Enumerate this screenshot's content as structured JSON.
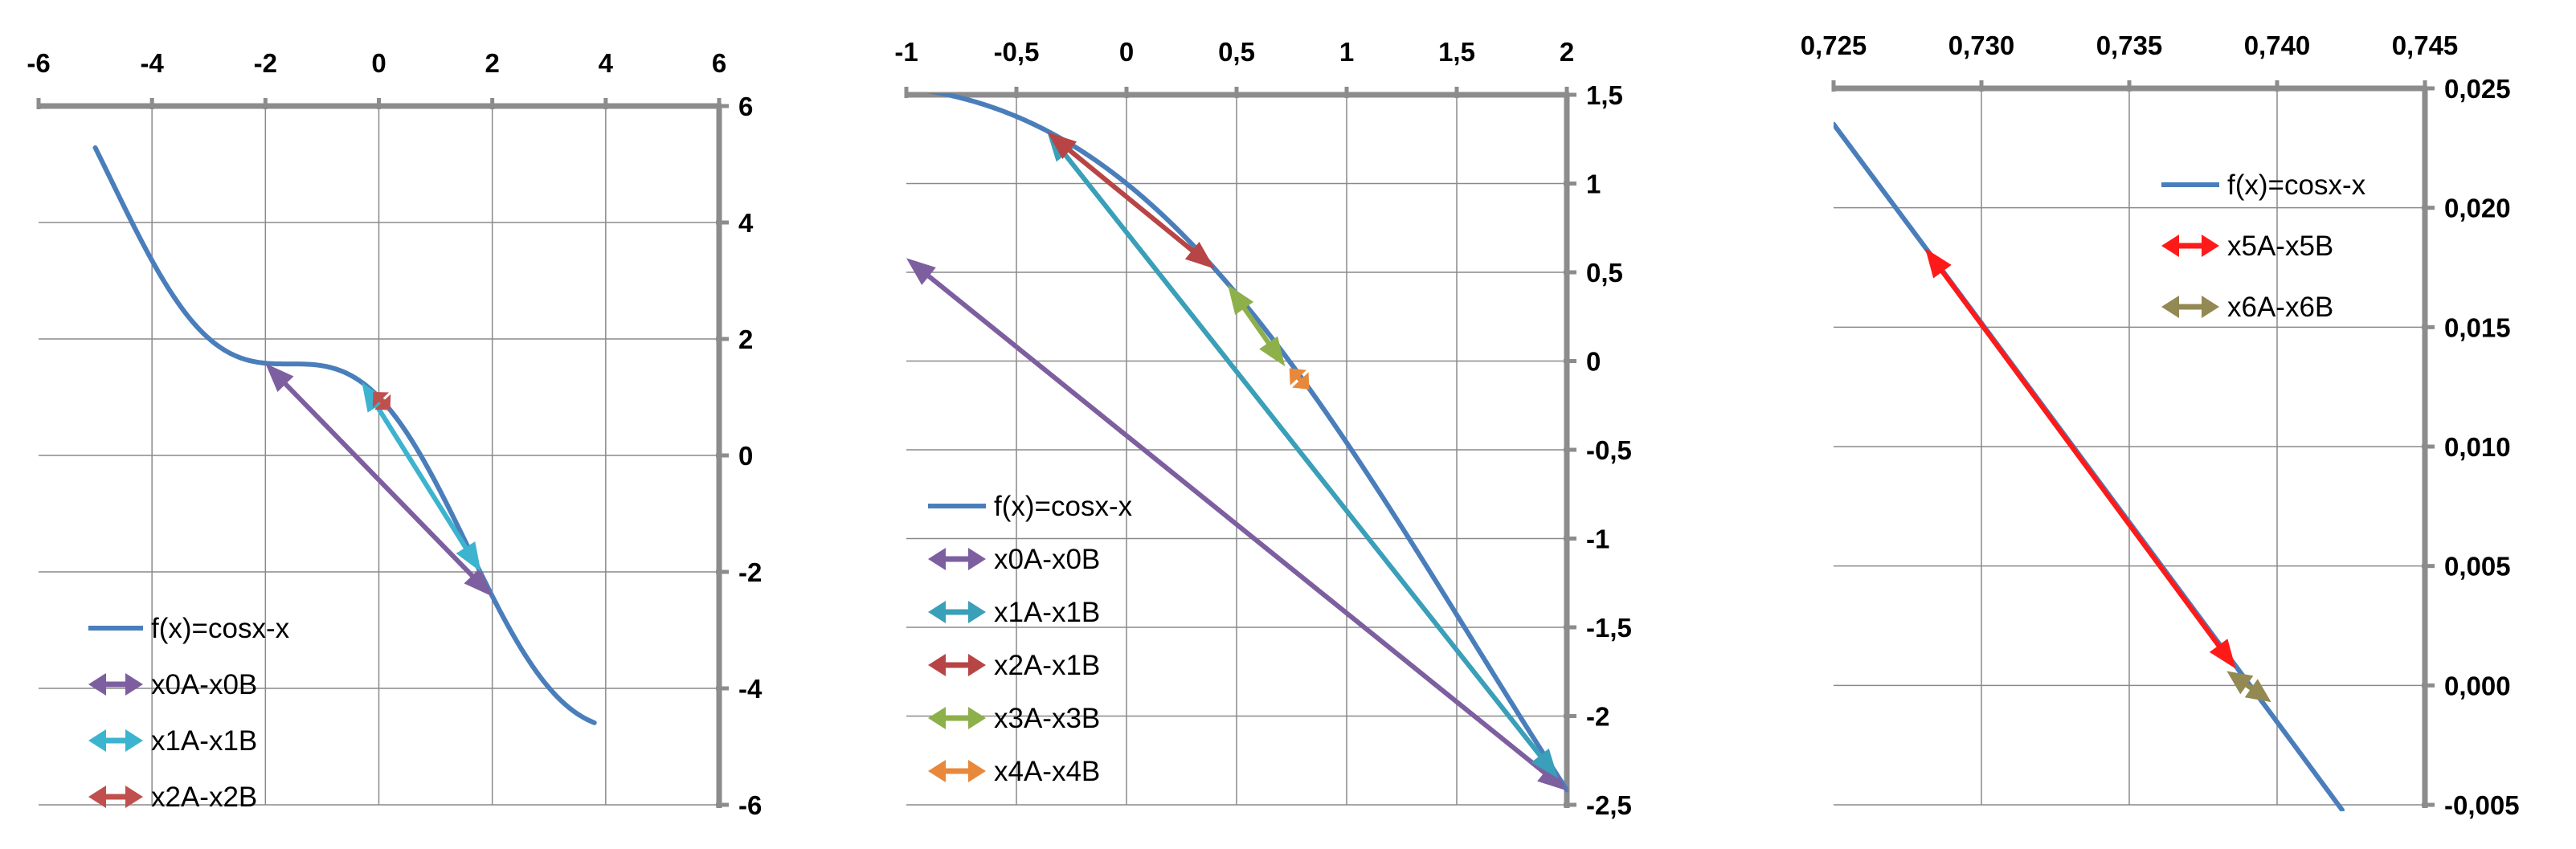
{
  "chart_data": [
    {
      "type": "line",
      "title": "",
      "xlabel": "",
      "ylabel": "",
      "xlim": [
        -6,
        6
      ],
      "ylim": [
        -6,
        6
      ],
      "x_ticks": [
        -6,
        -4,
        -2,
        0,
        2,
        4,
        6
      ],
      "y_ticks": [
        6,
        4,
        2,
        0,
        -2,
        -4,
        -6
      ],
      "x_tick_labels": [
        "-6",
        "-4",
        "-2",
        "0",
        "2",
        "4",
        "6"
      ],
      "y_tick_labels": [
        "6",
        "4",
        "2",
        "0",
        "-2",
        "-4",
        "-6"
      ],
      "x_axis_position": "top",
      "y_axis_position": "right",
      "grid": true,
      "legend_position": "bottom-left",
      "curve": {
        "name": "f(x)=cosx-x",
        "x_range": [
          -5,
          3.8
        ],
        "color": "#4a7ebb"
      },
      "series": [
        {
          "name": "x0A-x0B",
          "color": "#7d5fa0",
          "points": [
            [
              -2,
              1.58
            ],
            [
              2,
              -2.42
            ]
          ]
        },
        {
          "name": "x1A-x1B",
          "color": "#3cb4cf",
          "points": [
            [
              -0.3,
              1.26
            ],
            [
              1.8,
              -2.0
            ]
          ]
        },
        {
          "name": "x2A-x2B",
          "color": "#c0504d",
          "points": [
            [
              -0.1,
              1.09
            ],
            [
              0.2,
              0.78
            ]
          ]
        }
      ]
    },
    {
      "type": "line",
      "title": "",
      "xlabel": "",
      "ylabel": "",
      "xlim": [
        -1,
        2
      ],
      "ylim": [
        -2.5,
        1.5
      ],
      "x_ticks": [
        -1,
        -0.5,
        0,
        0.5,
        1,
        1.5,
        2
      ],
      "y_ticks": [
        1.5,
        1,
        0.5,
        0,
        -0.5,
        -1,
        -1.5,
        -2,
        -2.5
      ],
      "x_tick_labels": [
        "-1",
        "-0,5",
        "0",
        "0,5",
        "1",
        "1,5",
        "2"
      ],
      "y_tick_labels": [
        "1,5",
        "1",
        "0,5",
        "0",
        "-0,5",
        "-1",
        "-1,5",
        "-2",
        "-2,5"
      ],
      "x_axis_position": "top",
      "y_axis_position": "right",
      "grid": true,
      "legend_position": "bottom-left",
      "curve": {
        "name": "f(x)=cosx-x",
        "x_range": [
          -1,
          2
        ],
        "color": "#4a7ebb"
      },
      "series": [
        {
          "name": "x0A-x0B",
          "color": "#7d5fa0",
          "points": [
            [
              -1,
              0.58
            ],
            [
              2,
              -2.42
            ]
          ]
        },
        {
          "name": "x1A-x1B",
          "color": "#3a9fb8",
          "points": [
            [
              -0.36,
              1.29
            ],
            [
              1.96,
              -2.35
            ]
          ]
        },
        {
          "name": "x2A-x1B",
          "color": "#b84545",
          "points": [
            [
              -0.36,
              1.29
            ],
            [
              0.4,
              0.52
            ]
          ]
        },
        {
          "name": "x3A-x3B",
          "color": "#8db04a",
          "points": [
            [
              0.46,
              0.43
            ],
            [
              0.72,
              -0.03
            ]
          ]
        },
        {
          "name": "x4A-x4B",
          "color": "#e8883a",
          "points": [
            [
              0.74,
              -0.04
            ],
            [
              0.83,
              -0.16
            ]
          ]
        }
      ]
    },
    {
      "type": "line",
      "title": "",
      "xlabel": "",
      "ylabel": "",
      "xlim": [
        0.725,
        0.745
      ],
      "ylim": [
        -0.005,
        0.025
      ],
      "x_ticks": [
        0.725,
        0.73,
        0.735,
        0.74,
        0.745
      ],
      "y_ticks": [
        0.025,
        0.02,
        0.015,
        0.01,
        0.005,
        0,
        -0.005
      ],
      "x_tick_labels": [
        "0,725",
        "0,730",
        "0,735",
        "0,740",
        "0,745"
      ],
      "y_tick_labels": [
        "0,025",
        "0,020",
        "0,015",
        "0,010",
        "0,005",
        "0,000",
        "-0,005"
      ],
      "x_axis_position": "top",
      "y_axis_position": "right",
      "grid": true,
      "legend_position": "top-right",
      "curve": {
        "name": "f(x)=cosx-x",
        "x_range": [
          0.725,
          0.7422
        ],
        "color": "#4a7ebb"
      },
      "series": [
        {
          "name": "x5A-x5B",
          "color": "#ff1a1a",
          "points": [
            [
              0.7281,
              0.0183
            ],
            [
              0.7386,
              0.0007
            ]
          ]
        },
        {
          "name": "x6A-x6B",
          "color": "#938953",
          "points": [
            [
              0.7383,
              0.0006
            ],
            [
              0.7398,
              -0.0007
            ]
          ]
        }
      ]
    }
  ]
}
